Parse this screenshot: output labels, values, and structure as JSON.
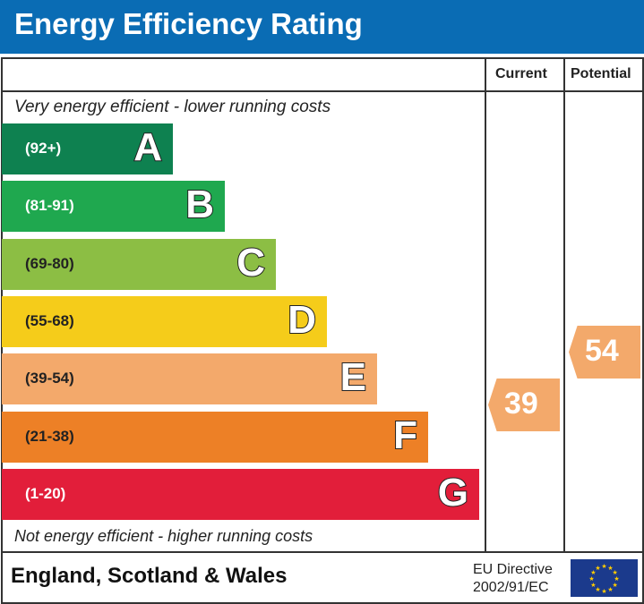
{
  "title": "Energy Efficiency Rating",
  "columns": {
    "current": "Current",
    "potential": "Potential"
  },
  "top_note": "Very energy efficient - lower running costs",
  "bottom_note": "Not energy efficient - higher running costs",
  "footer": {
    "region": "England, Scotland & Wales",
    "directive_line1": "EU Directive",
    "directive_line2": "2002/91/EC",
    "flag_icon": "eu-flag-icon"
  },
  "chart_data": {
    "type": "bar",
    "categories": [
      "A",
      "B",
      "C",
      "D",
      "E",
      "F",
      "G"
    ],
    "ranges": [
      "(92+)",
      "(81-91)",
      "(69-80)",
      "(55-68)",
      "(39-54)",
      "(21-38)",
      "(1-20)"
    ],
    "colors": [
      "#0e8150",
      "#1fa84f",
      "#8cbe44",
      "#f5cc1a",
      "#f3a96b",
      "#ed8026",
      "#e21e3a"
    ],
    "current": {
      "label": "Current",
      "value": "39",
      "band": "E",
      "color": "#f3a96b"
    },
    "potential": {
      "label": "Potential",
      "value": "54",
      "band": "E",
      "color": "#f3a96b"
    }
  }
}
